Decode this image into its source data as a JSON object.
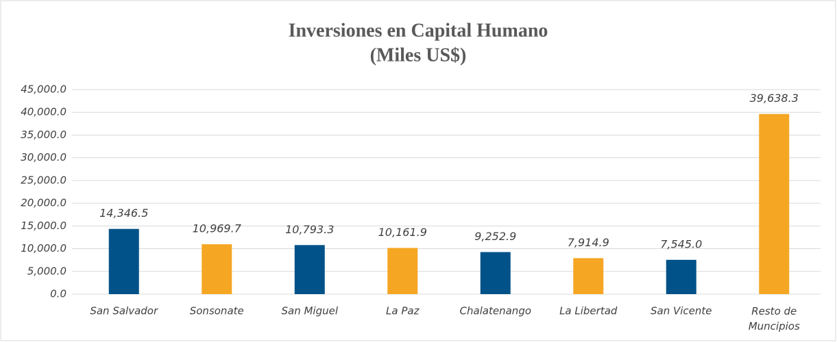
{
  "chart_data": {
    "type": "bar",
    "title": "Inversiones en Capital Humano",
    "subtitle": "(Miles US$)",
    "categories": [
      "San Salvador",
      "Sonsonate",
      "San Miguel",
      "La Paz",
      "Chalatenango",
      "La Libertad",
      "San Vicente",
      "Resto de Muncipios"
    ],
    "values": [
      14346.5,
      10969.7,
      10793.3,
      10161.9,
      9252.9,
      7914.9,
      7545.0,
      39638.3
    ],
    "value_labels": [
      "14,346.5",
      "10,969.7",
      "10,793.3",
      "10,161.9",
      "9,252.9",
      "7,914.9",
      "7,545.0",
      "39,638.3"
    ],
    "colors": [
      "#005288",
      "#f5a623",
      "#005288",
      "#f5a623",
      "#005288",
      "#f5a623",
      "#005288",
      "#f5a623"
    ],
    "ylim": [
      0,
      45000
    ],
    "yticks": [
      {
        "value": 0,
        "label": "0.0"
      },
      {
        "value": 5000,
        "label": "5,000.0"
      },
      {
        "value": 10000,
        "label": "10,000.0"
      },
      {
        "value": 15000,
        "label": "15,000.0"
      },
      {
        "value": 20000,
        "label": "20,000.0"
      },
      {
        "value": 25000,
        "label": "25,000.0"
      },
      {
        "value": 30000,
        "label": "30,000.0"
      },
      {
        "value": 35000,
        "label": "35,000.0"
      },
      {
        "value": 40000,
        "label": "40,000.0"
      },
      {
        "value": 45000,
        "label": "45,000.0"
      }
    ],
    "grid": true
  }
}
